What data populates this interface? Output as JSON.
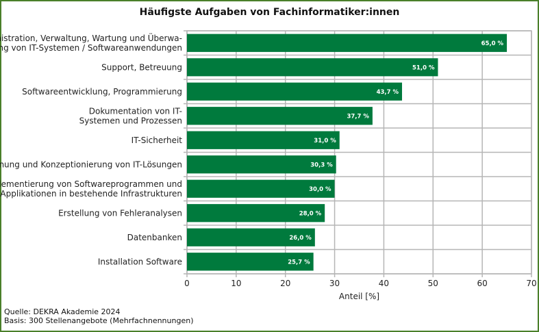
{
  "chart_data": {
    "type": "bar",
    "orientation": "horizontal",
    "title": "Häufigste Aufgaben von Fachinformatiker:innen",
    "xlabel": "Anteil [%]",
    "ylabel": "",
    "xlim": [
      0,
      70
    ],
    "xticks": [
      0,
      10,
      20,
      30,
      40,
      50,
      60,
      70
    ],
    "grid": true,
    "bar_color": "#007a3d",
    "categories": [
      [
        "Administration, Verwaltung, Wartung und Überwa-",
        "chung von IT-Systemen / Softwareanwendungen"
      ],
      [
        "Support, Betreuung"
      ],
      [
        "Softwareentwicklung, Programmierung"
      ],
      [
        "Dokumentation von IT-",
        "Systemen und Prozessen"
      ],
      [
        "IT-Sicherheit"
      ],
      [
        "Planung und Konzeptionierung von IT-Lösungen"
      ],
      [
        "Implementierung von Softwareprogrammen und",
        "Applikationen in bestehende Infrastrukturen"
      ],
      [
        "Erstellung von Fehleranalysen"
      ],
      [
        "Datenbanken"
      ],
      [
        "Installation Software"
      ]
    ],
    "values": [
      65.0,
      51.0,
      43.7,
      37.7,
      31.0,
      30.3,
      30.0,
      28.0,
      26.0,
      25.7
    ],
    "data_labels": [
      "65,0 %",
      "51,0 %",
      "43,7 %",
      "37,7 %",
      "31,0 %",
      "30,3 %",
      "30,0 %",
      "28,0 %",
      "26,0 %",
      "25,7 %"
    ]
  },
  "footer": {
    "source": "Quelle: DEKRA Akademie 2024",
    "basis": "Basis: 300 Stellenangebote (Mehrfachnennungen)"
  },
  "frame_color": "#4a7f2a"
}
